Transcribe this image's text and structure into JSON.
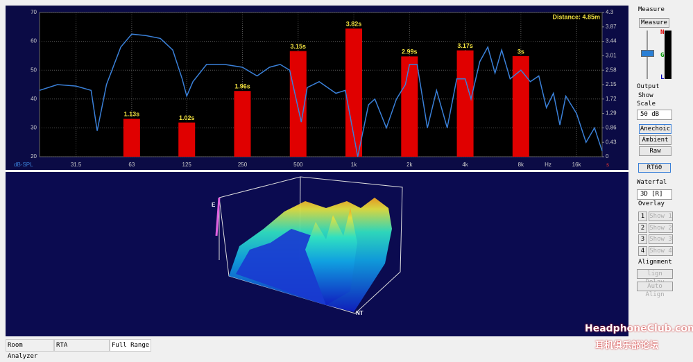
{
  "chart_data": {
    "type": "bar",
    "annotation": "Distance: 4.85m",
    "y_label": "dB-SPL",
    "x_unit": "Hz",
    "y2_label": "s",
    "log_x": true,
    "grid": true,
    "xlim": [
      20,
      22000
    ],
    "xticks": [
      31.5,
      63,
      125,
      250,
      500,
      {
        "value": 1000,
        "label": "1k"
      },
      {
        "value": 2000,
        "label": "2k"
      },
      {
        "value": 4000,
        "label": "4k"
      },
      {
        "value": 8000,
        "label": "8k"
      },
      {
        "value": 16000,
        "label": "16k"
      }
    ],
    "ylim": [
      20,
      70
    ],
    "yticks": [
      20,
      30,
      40,
      50,
      60,
      70
    ],
    "y2lim": [
      0,
      4.3
    ],
    "y2ticks": [
      0,
      0.43,
      0.86,
      1.29,
      1.72,
      2.15,
      2.58,
      3.01,
      3.44,
      3.87,
      4.3
    ],
    "bars": {
      "x": [
        63,
        125,
        250,
        500,
        1000,
        2000,
        4000,
        8000
      ],
      "values": [
        1.13,
        1.02,
        1.96,
        3.15,
        3.82,
        2.99,
        3.17,
        3
      ],
      "value_labels": [
        "1.13s",
        "1.02s",
        "1.96s",
        "3.15s",
        "3.82s",
        "2.99s",
        "3.17s",
        "3s"
      ],
      "color": "#e00000",
      "axis": "y2"
    },
    "line": {
      "color": "#3a80d8",
      "x": [
        20,
        25,
        31.5,
        38,
        41,
        46,
        55,
        63,
        75,
        90,
        105,
        118,
        125,
        135,
        160,
        200,
        250,
        300,
        350,
        400,
        450,
        520,
        560,
        650,
        800,
        900,
        1050,
        1200,
        1300,
        1500,
        1700,
        1900,
        2000,
        2200,
        2500,
        2800,
        3200,
        3600,
        4000,
        4300,
        4800,
        5300,
        5800,
        6300,
        7000,
        8000,
        9000,
        10000,
        11000,
        12000,
        13000,
        14000,
        16000,
        18000,
        20000,
        22000
      ],
      "values": [
        43,
        45,
        44.5,
        43,
        29,
        45,
        58,
        62.5,
        62,
        61,
        57,
        47,
        41,
        46,
        52,
        52,
        51,
        48,
        51,
        52,
        50,
        32,
        44,
        46,
        42,
        43,
        20,
        38,
        40,
        30,
        40,
        45,
        52,
        52,
        30,
        43,
        30,
        47,
        47,
        40,
        53,
        58,
        49,
        57,
        47,
        50,
        46,
        48,
        37,
        42,
        31,
        41,
        35,
        25,
        30,
        22
      ]
    }
  },
  "waterfall": {
    "axis_e": "E",
    "axis_nt": "NT"
  },
  "sidebar": {
    "measure_label": "Measure",
    "measure_button": "Measure",
    "meter": {
      "n": "N",
      "g": "G",
      "l": "L"
    },
    "output_label": "Output",
    "show_label": "Show",
    "scale_label": "Scale",
    "scale_select": "50 dB",
    "modes": [
      "Anechoic",
      "Ambient",
      "Raw"
    ],
    "rt60_button": "RT60",
    "waterfall_label": "Waterfal",
    "waterfall_select": "3D [R]",
    "overlay_label": "Overlay",
    "overlays": [
      {
        "number": "1",
        "label": "Show 1"
      },
      {
        "number": "2",
        "label": "Show 2"
      },
      {
        "number": "3",
        "label": "Show 3"
      },
      {
        "number": "4",
        "label": "Show 4"
      }
    ],
    "alignment_label": "Alignment",
    "align_delay": "lign Delay",
    "auto_align": "Auto Align"
  },
  "tabs": [
    "Room Analyzer",
    "RTA",
    "Full Range"
  ],
  "watermark": {
    "brand": "HeadphoneClub.com",
    "subtitle": "耳机俱乐部论坛"
  }
}
